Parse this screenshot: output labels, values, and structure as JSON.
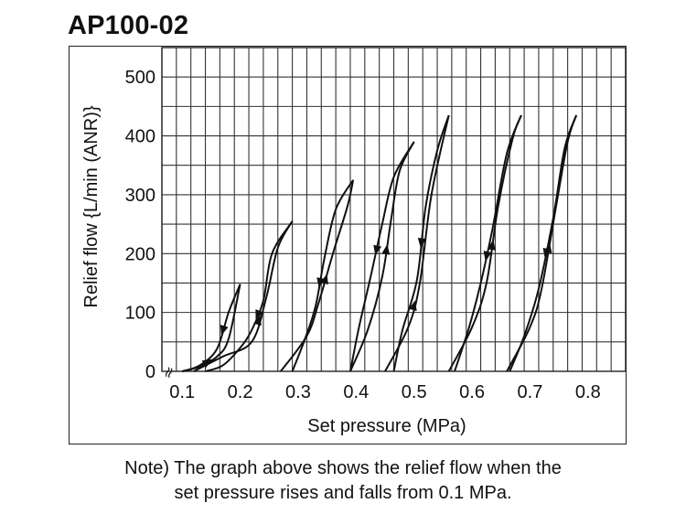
{
  "chart_data": {
    "type": "line",
    "title": "AP100-02",
    "xlabel": "Set pressure (MPa)",
    "ylabel": "Relief flow {L/min (ANR)}",
    "xlim": [
      0.065,
      0.865
    ],
    "ylim": [
      0,
      550
    ],
    "x_ticks": [
      0.1,
      0.2,
      0.3,
      0.4,
      0.5,
      0.6,
      0.7,
      0.8
    ],
    "x_tick_labels": [
      "0.1",
      "0.2",
      "0.3",
      "0.4",
      "0.5",
      "0.6",
      "0.7",
      "0.8"
    ],
    "y_ticks": [
      0,
      100,
      200,
      300,
      400,
      500
    ],
    "y_tick_labels": [
      "0",
      "100",
      "200",
      "300",
      "400",
      "500"
    ],
    "grid": true,
    "axis_break_symbol": "≈",
    "series": [
      {
        "rising": [
          [
            0.1,
            0
          ],
          [
            0.13,
            8
          ],
          [
            0.16,
            25
          ],
          [
            0.18,
            55
          ],
          [
            0.2,
            148
          ]
        ],
        "falling": [
          [
            0.2,
            148
          ],
          [
            0.18,
            100
          ],
          [
            0.16,
            38
          ],
          [
            0.13,
            10
          ],
          [
            0.1,
            0
          ]
        ]
      },
      {
        "rising": [
          [
            0.12,
            0
          ],
          [
            0.17,
            25
          ],
          [
            0.22,
            50
          ],
          [
            0.245,
            125
          ],
          [
            0.265,
            210
          ],
          [
            0.29,
            255
          ]
        ],
        "falling": [
          [
            0.29,
            255
          ],
          [
            0.255,
            200
          ],
          [
            0.24,
            120
          ],
          [
            0.22,
            70
          ],
          [
            0.2,
            40
          ],
          [
            0.17,
            10
          ],
          [
            0.14,
            0
          ]
        ]
      },
      {
        "rising": [
          [
            0.27,
            0
          ],
          [
            0.315,
            60
          ],
          [
            0.335,
            115
          ],
          [
            0.36,
            200
          ],
          [
            0.385,
            280
          ],
          [
            0.395,
            325
          ]
        ],
        "falling": [
          [
            0.395,
            325
          ],
          [
            0.365,
            275
          ],
          [
            0.345,
            190
          ],
          [
            0.33,
            110
          ],
          [
            0.31,
            50
          ],
          [
            0.29,
            0
          ]
        ]
      },
      {
        "rising": [
          [
            0.39,
            0
          ],
          [
            0.42,
            70
          ],
          [
            0.445,
            160
          ],
          [
            0.46,
            255
          ],
          [
            0.475,
            340
          ],
          [
            0.5,
            390
          ]
        ],
        "falling": [
          [
            0.5,
            390
          ],
          [
            0.465,
            330
          ],
          [
            0.445,
            250
          ],
          [
            0.425,
            160
          ],
          [
            0.405,
            75
          ],
          [
            0.39,
            0
          ]
        ]
      },
      {
        "rising": [
          [
            0.45,
            0
          ],
          [
            0.49,
            75
          ],
          [
            0.51,
            150
          ],
          [
            0.53,
            300
          ],
          [
            0.56,
            435
          ]
        ],
        "falling": [
          [
            0.56,
            435
          ],
          [
            0.54,
            375
          ],
          [
            0.52,
            280
          ],
          [
            0.505,
            155
          ],
          [
            0.48,
            70
          ],
          [
            0.465,
            0
          ]
        ]
      },
      {
        "rising": [
          [
            0.56,
            0
          ],
          [
            0.6,
            75
          ],
          [
            0.625,
            150
          ],
          [
            0.645,
            280
          ],
          [
            0.67,
            395
          ],
          [
            0.685,
            435
          ]
        ],
        "falling": [
          [
            0.685,
            435
          ],
          [
            0.66,
            370
          ],
          [
            0.635,
            240
          ],
          [
            0.615,
            150
          ],
          [
            0.595,
            75
          ],
          [
            0.57,
            0
          ]
        ]
      },
      {
        "rising": [
          [
            0.66,
            0
          ],
          [
            0.7,
            75
          ],
          [
            0.72,
            140
          ],
          [
            0.745,
            280
          ],
          [
            0.765,
            390
          ],
          [
            0.78,
            435
          ]
        ],
        "falling": [
          [
            0.78,
            435
          ],
          [
            0.76,
            380
          ],
          [
            0.74,
            260
          ],
          [
            0.715,
            140
          ],
          [
            0.69,
            60
          ],
          [
            0.665,
            0
          ]
        ]
      }
    ]
  },
  "note": {
    "line1": "Note) The graph above shows the relief flow when the",
    "line2": "set pressure rises and falls from 0.1 MPa."
  }
}
